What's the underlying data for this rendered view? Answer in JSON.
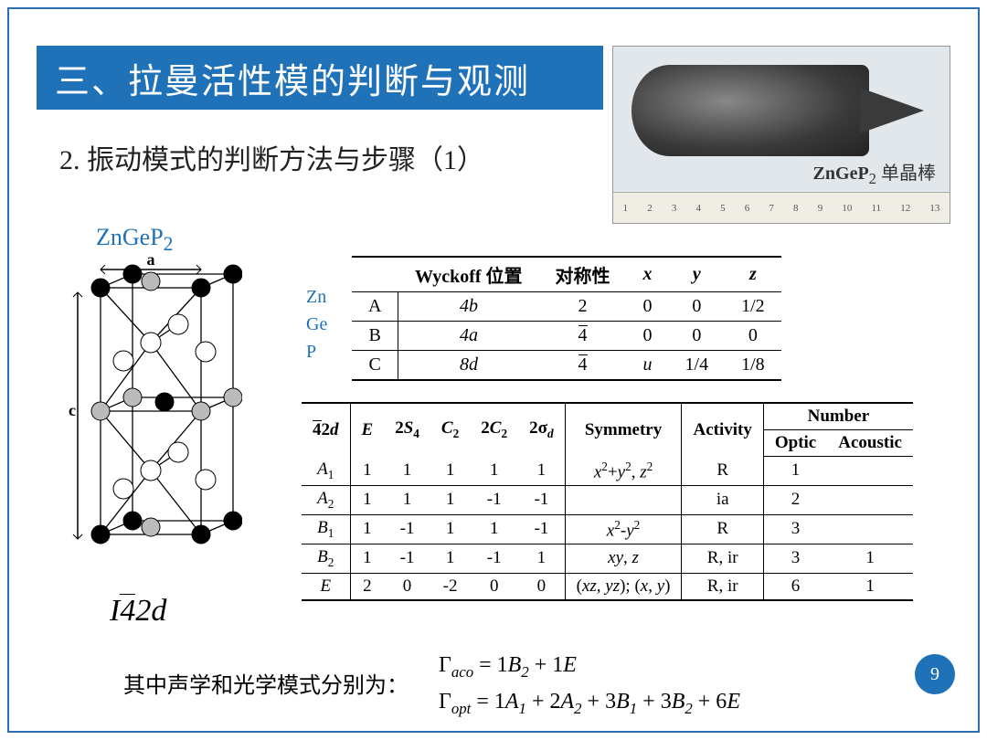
{
  "title": "三、拉曼活性模的判断与观测",
  "subtitle": "2. 振动模式的判断方法与步骤（1）",
  "photo": {
    "label_formula": "ZnGeP",
    "label_sub": "2",
    "label_suffix": " 单晶棒",
    "ruler_ticks": [
      "1",
      "2",
      "3",
      "4",
      "5",
      "6",
      "7",
      "8",
      "9",
      "10",
      "11",
      "12",
      "13"
    ]
  },
  "crystal_label": {
    "main": "ZnGeP",
    "sub": "2"
  },
  "space_group": {
    "lead": "I",
    "over": "4",
    "tail": "2d"
  },
  "elements": [
    "Zn",
    "Ge",
    "P"
  ],
  "table1": {
    "headers": [
      "",
      "Wyckoff 位置",
      "对称性",
      "x",
      "y",
      "z"
    ],
    "rows": [
      [
        "A",
        "4b",
        "2",
        "0",
        "0",
        "1/2"
      ],
      [
        "B",
        "4a",
        "4̄",
        "0",
        "0",
        "0"
      ],
      [
        "C",
        "8d",
        "4̄",
        "u",
        "1/4",
        "1/8"
      ]
    ]
  },
  "table2": {
    "group": "4̄2d",
    "col_headers": [
      "E",
      "2S₄",
      "C₂",
      "2C₂",
      "2σ_d",
      "Symmetry",
      "Activity",
      "Optic",
      "Acoustic"
    ],
    "number_label": "Number",
    "rows": [
      {
        "label": "A₁",
        "vals": [
          "1",
          "1",
          "1",
          "1",
          "1"
        ],
        "sym": "x²+y², z²",
        "act": "R",
        "opt": "1",
        "ac": ""
      },
      {
        "label": "A₂",
        "vals": [
          "1",
          "1",
          "1",
          "-1",
          "-1"
        ],
        "sym": "",
        "act": "ia",
        "opt": "2",
        "ac": ""
      },
      {
        "label": "B₁",
        "vals": [
          "1",
          "-1",
          "1",
          "1",
          "-1"
        ],
        "sym": "x²-y²",
        "act": "R",
        "opt": "3",
        "ac": ""
      },
      {
        "label": "B₂",
        "vals": [
          "1",
          "-1",
          "1",
          "-1",
          "1"
        ],
        "sym": "xy, z",
        "act": "R, ir",
        "opt": "3",
        "ac": "1"
      },
      {
        "label": "E",
        "vals": [
          "2",
          "0",
          "-2",
          "0",
          "0"
        ],
        "sym": "(xz, yz); (x, y)",
        "act": "R, ir",
        "opt": "6",
        "ac": "1"
      }
    ]
  },
  "footer_text": "其中声学和光学模式分别为：",
  "equations": {
    "aco": "Γ_{aco} = 1B₂ + 1E",
    "opt": "Γ_{opt} = 1A₁ + 2A₂ + 3B₁ + 3B₂ + 6E"
  },
  "page_number": "9",
  "colors": {
    "accent": "#2072b8",
    "border": "#2c6fb0",
    "text": "#222222"
  }
}
